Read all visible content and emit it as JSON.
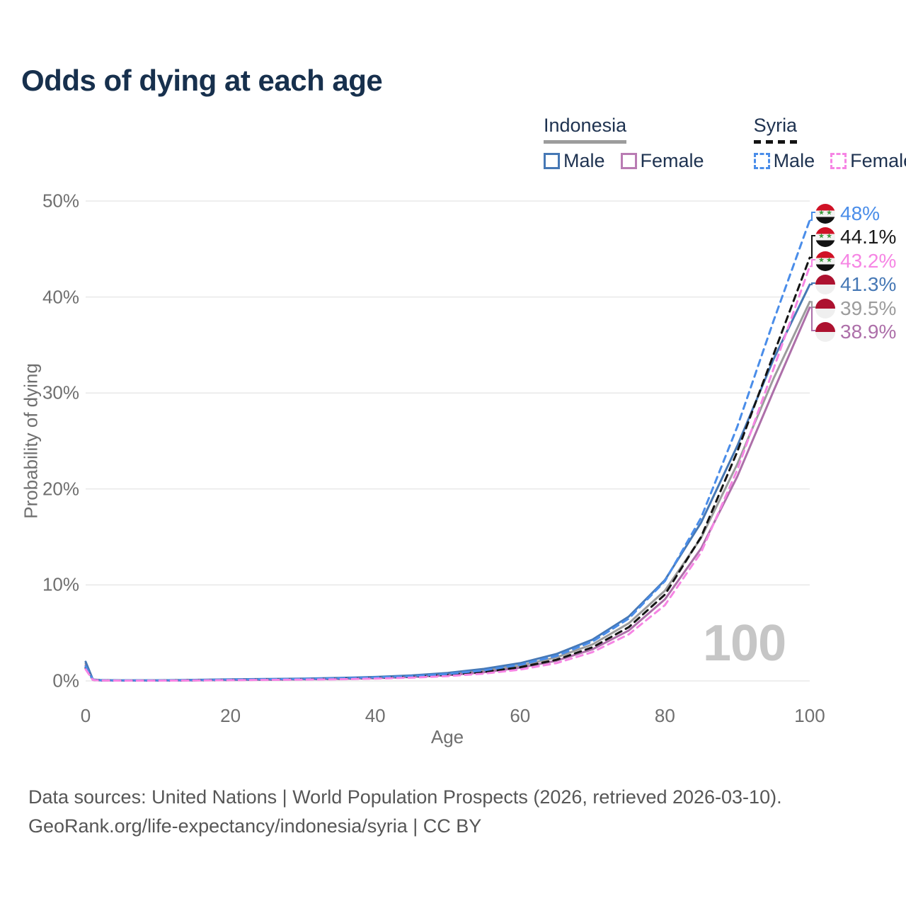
{
  "title": "Odds of dying at each age",
  "watermark": "100",
  "legend": {
    "groups": [
      {
        "country": "Indonesia",
        "line_style": "solid",
        "underline_color": "#9c9c9c",
        "items": [
          {
            "label": "Male",
            "color": "#4678b5"
          },
          {
            "label": "Female",
            "color": "#b97cb3"
          }
        ]
      },
      {
        "country": "Syria",
        "line_style": "dashed",
        "underline_color": "#141414",
        "items": [
          {
            "label": "Male",
            "color": "#4a8de9"
          },
          {
            "label": "Female",
            "color": "#f685e4"
          }
        ]
      }
    ]
  },
  "chart_data": {
    "type": "line",
    "title": "Odds of dying at each age",
    "xlabel": "Age",
    "ylabel": "Probability of dying",
    "xlim": [
      0,
      100
    ],
    "ylim": [
      0,
      50
    ],
    "x_ticks": [
      0,
      20,
      40,
      60,
      80,
      100
    ],
    "y_ticks": [
      "0%",
      "10%",
      "20%",
      "30%",
      "40%",
      "50%"
    ],
    "grid": "horizontal",
    "legend_position": "top-right",
    "x": [
      0,
      1,
      2,
      5,
      10,
      15,
      20,
      25,
      30,
      35,
      40,
      45,
      50,
      55,
      60,
      65,
      70,
      75,
      80,
      85,
      90,
      95,
      100
    ],
    "series": [
      {
        "name": "Syria Male",
        "country": "syria",
        "sex": "male",
        "color": "#4a8de9",
        "dash": true,
        "end_label": "48%",
        "values": [
          1.5,
          0.12,
          0.07,
          0.05,
          0.05,
          0.08,
          0.13,
          0.17,
          0.21,
          0.27,
          0.36,
          0.5,
          0.73,
          1.1,
          1.68,
          2.6,
          4.1,
          6.5,
          10.4,
          17.0,
          26.5,
          37.5,
          48.0
        ]
      },
      {
        "name": "Syria Both",
        "country": "syria",
        "sex": "both",
        "color": "#141414",
        "dash": true,
        "end_label": "44.1%",
        "values": [
          1.35,
          0.11,
          0.06,
          0.04,
          0.04,
          0.07,
          0.11,
          0.14,
          0.17,
          0.22,
          0.3,
          0.43,
          0.62,
          0.94,
          1.42,
          2.2,
          3.5,
          5.6,
          9.0,
          15.0,
          23.9,
          34.0,
          44.1
        ]
      },
      {
        "name": "Syria Female",
        "country": "syria",
        "sex": "female",
        "color": "#f685e4",
        "dash": true,
        "end_label": "43.2%",
        "values": [
          1.2,
          0.1,
          0.05,
          0.03,
          0.03,
          0.05,
          0.08,
          0.1,
          0.13,
          0.17,
          0.24,
          0.34,
          0.5,
          0.76,
          1.18,
          1.85,
          3.0,
          4.85,
          7.9,
          13.4,
          22.0,
          32.5,
          43.2
        ]
      },
      {
        "name": "Indonesia Male",
        "country": "indonesia",
        "sex": "male",
        "color": "#4678b5",
        "dash": false,
        "end_label": "41.3%",
        "values": [
          2.0,
          0.15,
          0.09,
          0.06,
          0.07,
          0.11,
          0.16,
          0.2,
          0.24,
          0.31,
          0.41,
          0.57,
          0.83,
          1.25,
          1.85,
          2.8,
          4.3,
          6.7,
          10.5,
          16.5,
          24.5,
          33.5,
          41.3
        ]
      },
      {
        "name": "Indonesia Both",
        "country": "indonesia",
        "sex": "both",
        "color": "#9c9c9c",
        "dash": false,
        "end_label": "39.5%",
        "values": [
          1.8,
          0.13,
          0.08,
          0.05,
          0.06,
          0.09,
          0.13,
          0.16,
          0.2,
          0.26,
          0.35,
          0.49,
          0.71,
          1.07,
          1.6,
          2.45,
          3.8,
          6.0,
          9.4,
          14.9,
          22.6,
          31.5,
          39.5
        ]
      },
      {
        "name": "Indonesia Female",
        "country": "indonesia",
        "sex": "female",
        "color": "#ad6fa9",
        "dash": false,
        "end_label": "38.9%",
        "values": [
          1.6,
          0.11,
          0.06,
          0.04,
          0.04,
          0.06,
          0.09,
          0.12,
          0.16,
          0.21,
          0.29,
          0.41,
          0.6,
          0.9,
          1.37,
          2.1,
          3.3,
          5.25,
          8.5,
          13.8,
          21.3,
          30.2,
          38.9
        ]
      }
    ]
  },
  "footer": {
    "line1": "Data sources: United Nations | World Population Prospects (2026, retrieved 2026-03-10).",
    "line2": "GeoRank.org/life-expectancy/indonesia/syria | CC BY"
  }
}
